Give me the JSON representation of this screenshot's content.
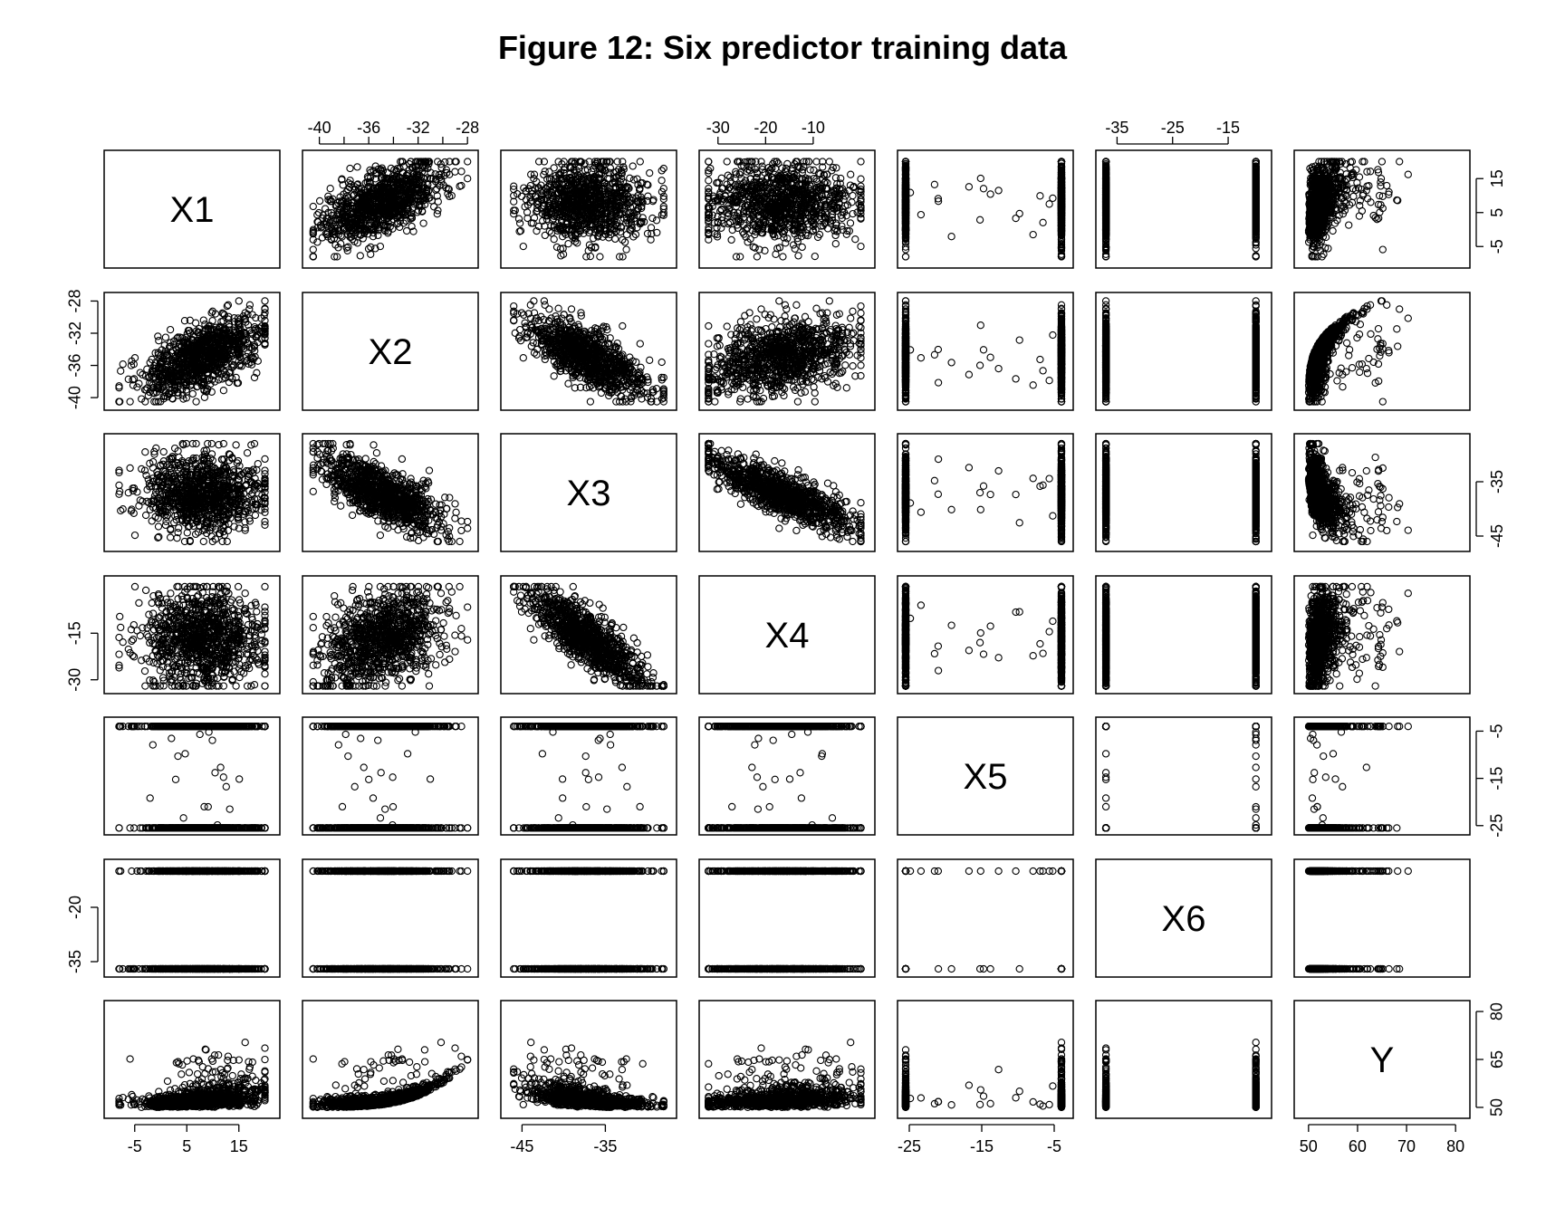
{
  "chart_data": {
    "type": "scatter",
    "title": "Figure 12: Six predictor training data",
    "variables": [
      {
        "name": "X1",
        "range": [
          -10,
          22
        ],
        "ticks": [
          "-5",
          "5",
          "15"
        ],
        "tick_values": [
          -5,
          5,
          15
        ]
      },
      {
        "name": "X2",
        "range": [
          -41,
          -27.5
        ],
        "ticks": [
          "-40",
          "-36",
          "-32",
          "-28"
        ],
        "tick_values": [
          -40,
          -36,
          -32,
          -28
        ],
        "minor_ticks": [
          -38,
          -34,
          -30
        ]
      },
      {
        "name": "X3",
        "range": [
          -47,
          -27
        ],
        "ticks": [
          "-45",
          "-35"
        ],
        "tick_values": [
          -45,
          -35
        ]
      },
      {
        "name": "X4",
        "range": [
          -33,
          2
        ],
        "ticks": [
          "-30",
          "-20",
          "-10"
        ],
        "tick_values": [
          -30,
          -20,
          -10
        ],
        "left_ticks": [
          "-30",
          "-15"
        ],
        "left_tick_values": [
          -30,
          -15
        ]
      },
      {
        "name": "X5",
        "range": [
          -26,
          -3
        ],
        "ticks": [
          "-25",
          "-15",
          "-5"
        ],
        "tick_values": [
          -25,
          -15,
          -5
        ]
      },
      {
        "name": "X6",
        "range": [
          -38,
          -8
        ],
        "ticks": [
          "-35",
          "-25",
          "-15"
        ],
        "tick_values": [
          -35,
          -25,
          -15
        ],
        "left_ticks": [
          "-35",
          "-20"
        ],
        "left_tick_values": [
          -35,
          -20
        ]
      },
      {
        "name": "Y",
        "range": [
          48,
          82
        ],
        "ticks": [
          "50",
          "60",
          "70",
          "80"
        ],
        "tick_values": [
          50,
          60,
          70,
          80
        ],
        "right_ticks": [
          "50",
          "65",
          "80"
        ],
        "right_tick_values": [
          50,
          65,
          80
        ]
      }
    ],
    "n_points": 1000,
    "axis_placement": {
      "bottom": [
        "X1",
        "X3",
        "X5",
        "Y"
      ],
      "top": [
        "X2",
        "X4",
        "X6"
      ],
      "left": [
        "X2",
        "X4",
        "X6"
      ],
      "right": [
        "X1",
        "X3",
        "X5",
        "Y"
      ]
    },
    "point_style": "open circle",
    "point_color": "#000000"
  }
}
